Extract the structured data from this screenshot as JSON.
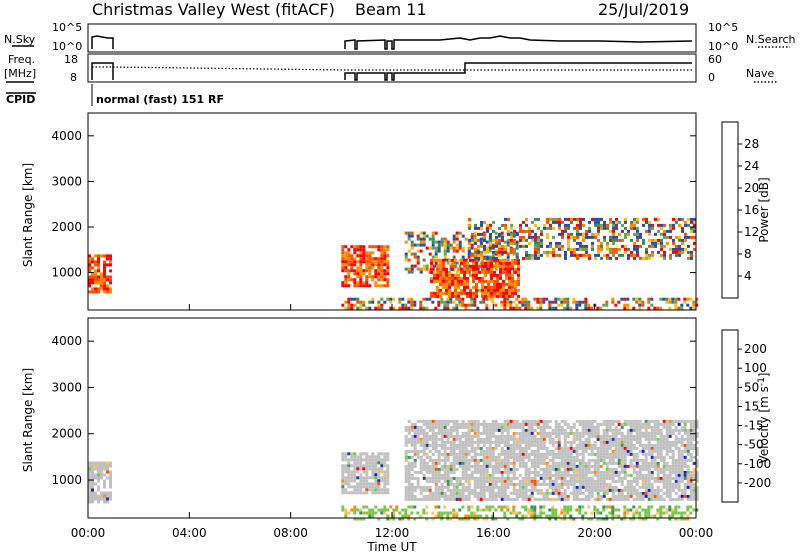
{
  "header": {
    "title": "Christmas Valley West (fitACF)",
    "beam": "Beam 11",
    "date": "25/Jul/2019"
  },
  "status_panel": {
    "nsky_label": "N.Sky",
    "nsky_ticks": [
      "10^5",
      "10^0"
    ],
    "nsearch_label": "N.Search",
    "nsearch_ticks": [
      "10^5",
      "10^0"
    ],
    "freq_label_1": "Freq.",
    "freq_label_2": "[MHz]",
    "freq_ticks": [
      "18",
      "8"
    ],
    "nave_label": "Nave",
    "nave_ticks": [
      "60",
      "0"
    ],
    "cpid_label": "CPID",
    "cpid_text": "normal (fast) 151 RF"
  },
  "colors": {
    "power": [
      "#0000ff",
      "#2a4ea0",
      "#3e8a5e",
      "#6aa05a",
      "#f0c020",
      "#ff8c00",
      "#ff5000",
      "#ff0000"
    ],
    "velocity": [
      "#ff0000",
      "#ff5000",
      "#ff8c00",
      "#ffc060",
      "#c8c8c8",
      "#78c850",
      "#3c9650",
      "#2a3c96",
      "#1e1ec8"
    ],
    "ground": "#c0c0c0"
  },
  "chart_data": [
    {
      "type": "heatmap",
      "name": "power",
      "xlabel": "",
      "ylabel": "Slant Range [km]",
      "xlim": [
        0,
        24
      ],
      "ylim": [
        180,
        4500
      ],
      "yticks": [
        1000,
        2000,
        3000,
        4000
      ],
      "colorbar": {
        "label": "Power [dB]",
        "range": [
          0,
          32
        ],
        "ticks": [
          "4",
          "8",
          "12",
          "16",
          "20",
          "24",
          "28"
        ]
      },
      "regions": [
        {
          "t": [
            0.0,
            0.9
          ],
          "r": [
            550,
            1400
          ],
          "level": "strong"
        },
        {
          "t": [
            10.0,
            11.8
          ],
          "r": [
            700,
            1600
          ],
          "level": "strong"
        },
        {
          "t": [
            12.5,
            17.0
          ],
          "r": [
            1000,
            1900
          ],
          "level": "moderate"
        },
        {
          "t": [
            13.5,
            17.0
          ],
          "r": [
            500,
            1300
          ],
          "level": "strong"
        },
        {
          "t": [
            15.0,
            24.0
          ],
          "r": [
            1300,
            2200
          ],
          "level": "moderate"
        },
        {
          "t": [
            10.0,
            24.0
          ],
          "r": [
            200,
            450
          ],
          "level": "moderate"
        }
      ]
    },
    {
      "type": "heatmap",
      "name": "velocity",
      "xlabel": "Time UT",
      "ylabel": "Slant Range [km]",
      "xlim": [
        0,
        24
      ],
      "ylim": [
        180,
        4500
      ],
      "xticks": [
        "00:00",
        "04:00",
        "08:00",
        "12:00",
        "16:00",
        "20:00",
        "00:00"
      ],
      "yticks": [
        1000,
        2000,
        3000,
        4000
      ],
      "colorbar": {
        "label": "Velocity [m s^-1]",
        "ticks": [
          "200",
          "100",
          "50",
          "15",
          "-15",
          "-50",
          "-100",
          "-200"
        ]
      },
      "regions": [
        {
          "t": [
            0.0,
            0.9
          ],
          "r": [
            550,
            1400
          ],
          "level": "ground"
        },
        {
          "t": [
            10.0,
            11.8
          ],
          "r": [
            700,
            1600
          ],
          "level": "ground"
        },
        {
          "t": [
            12.5,
            24.0
          ],
          "r": [
            600,
            2300
          ],
          "level": "ground"
        },
        {
          "t": [
            10.0,
            24.0
          ],
          "r": [
            180,
            450
          ],
          "level": "low-velocity"
        }
      ]
    }
  ]
}
